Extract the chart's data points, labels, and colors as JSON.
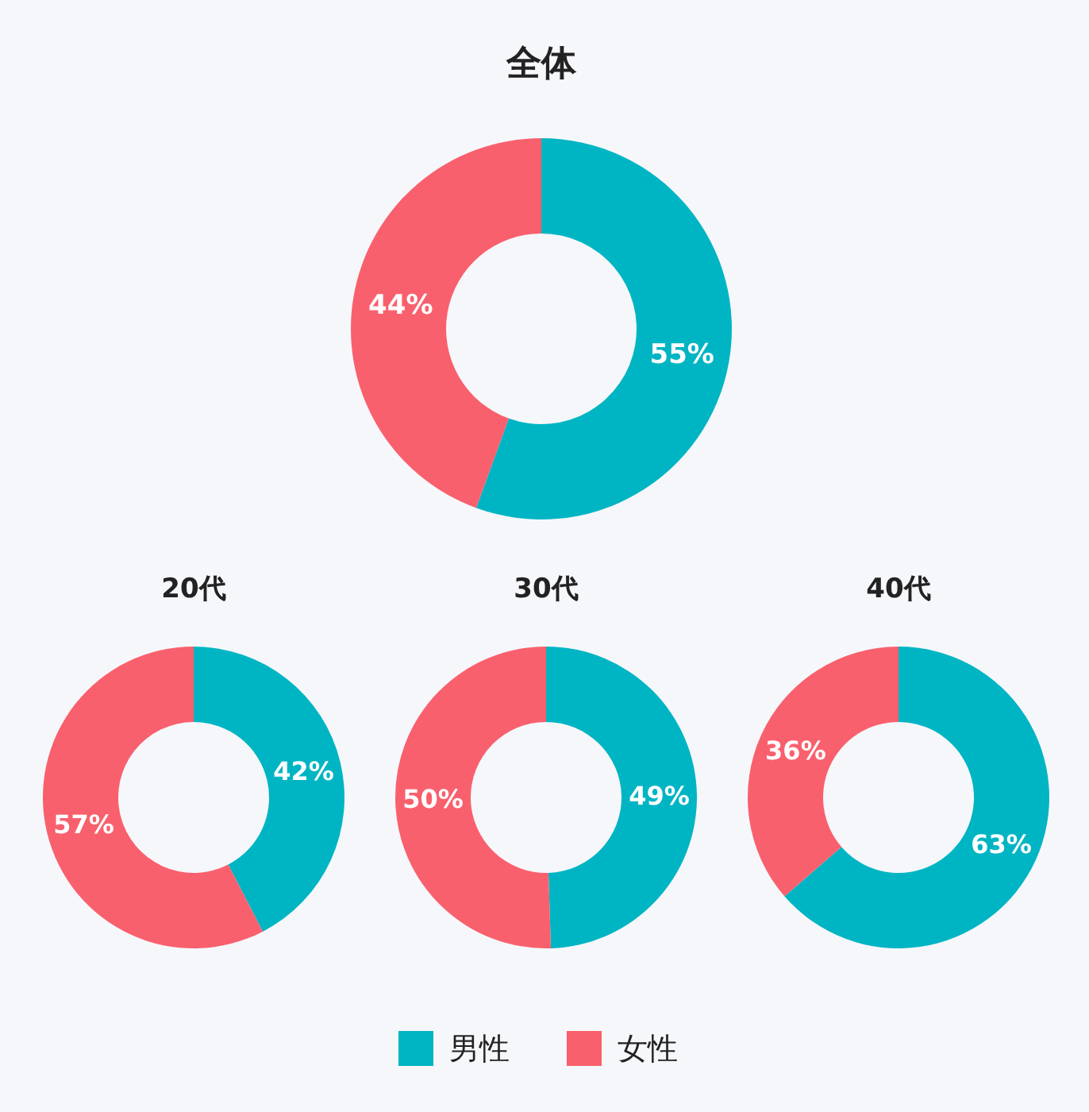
{
  "chart_data": [
    {
      "type": "donut",
      "title": "全体",
      "categories": [
        "男性",
        "女性"
      ],
      "values": [
        55,
        44
      ],
      "value_labels": [
        "55%",
        "44%"
      ],
      "colors": [
        "#00b5c3",
        "#f9606d"
      ],
      "legend": "bottom"
    },
    {
      "type": "donut",
      "title": "20代",
      "categories": [
        null,
        null
      ],
      "values": [
        42,
        57
      ],
      "value_labels": [
        "42%",
        "57%"
      ],
      "colors": [
        "#00b5c3",
        "#f9606d"
      ]
    },
    {
      "type": "donut",
      "title": "30代",
      "categories": [
        null,
        null
      ],
      "values": [
        49,
        50
      ],
      "value_labels": [
        "49%",
        "50%"
      ],
      "colors": [
        "#00b5c3",
        "#f9606d"
      ]
    },
    {
      "type": "donut",
      "title": "40代",
      "categories": [
        null,
        null
      ],
      "values": [
        63,
        36
      ],
      "value_labels": [
        "63%",
        "36%"
      ],
      "colors": [
        "#00b5c3",
        "#f9606d"
      ]
    }
  ]
}
